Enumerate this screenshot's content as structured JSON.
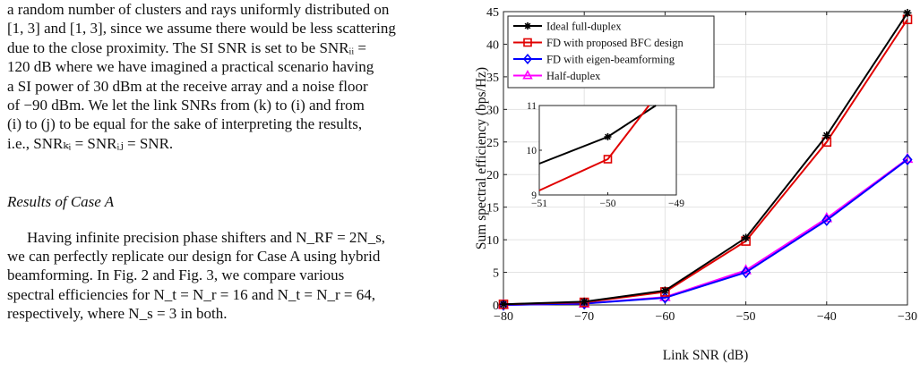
{
  "text": {
    "para1_lines": [
      "a random number of clusters and rays uniformly distributed on",
      "[1, 3] and [1, 3], since we assume there would be less scattering",
      "due to the close proximity. The SI SNR is set to be SNRᵢᵢ =",
      "120 dB where we have imagined a practical scenario having",
      "a SI power of 30 dBm at the receive array and a noise floor",
      "of −90 dBm. We let the link SNRs from (k) to (i) and from",
      "(i) to (j) to be equal for the sake of interpreting the results,",
      "i.e., SNRₖᵢ = SNRᵢⱼ = SNR."
    ],
    "section_heading": "Results of Case A",
    "para2_lines": [
      "Having infinite precision phase shifters and N_RF = 2N_s,",
      "we can perfectly replicate our design for Case A using hybrid",
      "beamforming. In Fig. 2 and Fig. 3, we compare various",
      "spectral efficiencies for N_t = N_r = 16 and N_t = N_r = 64,",
      "respectively, where N_s = 3 in both."
    ]
  },
  "chart_data": {
    "type": "line",
    "xlabel": "Link SNR (dB)",
    "ylabel": "Sum spectral efficiency (bps/Hz)",
    "xlim": [
      -80,
      -30
    ],
    "ylim": [
      0,
      45
    ],
    "xticks": [
      -80,
      -70,
      -60,
      -50,
      -40,
      -30
    ],
    "yticks": [
      0,
      5,
      10,
      15,
      20,
      25,
      30,
      35,
      40,
      45
    ],
    "grid": true,
    "legend_position": "top-left",
    "x": [
      -80,
      -70,
      -60,
      -50,
      -40,
      -30
    ],
    "series": [
      {
        "name": "Ideal full-duplex",
        "color": "#000000",
        "marker": "asterisk",
        "values": [
          0.1,
          0.5,
          2.2,
          10.3,
          26.0,
          44.8
        ]
      },
      {
        "name": "FD with proposed BFC design",
        "color": "#e00000",
        "marker": "square",
        "values": [
          0.1,
          0.4,
          2.0,
          9.8,
          25.0,
          43.8
        ]
      },
      {
        "name": "FD with eigen-beamforming",
        "color": "#0000ff",
        "marker": "diamond",
        "values": [
          0.0,
          0.2,
          1.1,
          5.0,
          13.0,
          22.3
        ]
      },
      {
        "name": "Half-duplex",
        "color": "#ff00ff",
        "marker": "triangle",
        "values": [
          0.0,
          0.2,
          1.2,
          5.3,
          13.3,
          22.4
        ]
      }
    ],
    "inset": {
      "xlim": [
        -51,
        -49
      ],
      "ylim": [
        9,
        11
      ],
      "xticks": [
        -51,
        -50,
        -49
      ],
      "yticks": [
        9,
        10,
        11
      ],
      "series": [
        {
          "name": "Ideal full-duplex",
          "color": "#000000",
          "marker": "asterisk",
          "x": [
            -51,
            -50,
            -49.3
          ],
          "values": [
            9.7,
            10.3,
            11
          ]
        },
        {
          "name": "FD with proposed BFC design",
          "color": "#e00000",
          "marker": "square",
          "x": [
            -51,
            -50,
            -49.4
          ],
          "values": [
            9.1,
            9.8,
            11
          ]
        }
      ]
    }
  }
}
